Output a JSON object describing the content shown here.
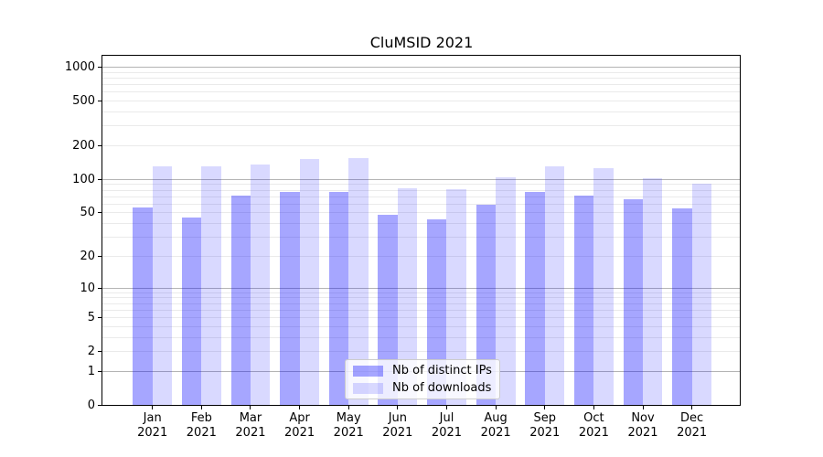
{
  "title": "CluMSID 2021",
  "chart_data": {
    "type": "bar",
    "title": "CluMSID 2021",
    "categories": [
      "Jan 2021",
      "Feb 2021",
      "Mar 2021",
      "Apr 2021",
      "May 2021",
      "Jun 2021",
      "Jul 2021",
      "Aug 2021",
      "Sep 2021",
      "Oct 2021",
      "Nov 2021",
      "Dec 2021"
    ],
    "series": [
      {
        "name": "Nb of distinct IPs",
        "color": "rgba(0,0,255,0.35)",
        "values": [
          56,
          45,
          72,
          78,
          77,
          48,
          44,
          59,
          78,
          71,
          66,
          55
        ]
      },
      {
        "name": "Nb of downloads",
        "color": "rgba(0,0,255,0.15)",
        "values": [
          130,
          130,
          137,
          153,
          156,
          84,
          82,
          105,
          130,
          126,
          103,
          91
        ]
      }
    ],
    "xlabel": "",
    "ylabel": "",
    "y_axis": {
      "scale": "log1p",
      "tick_labels": [
        "1000",
        "500",
        "200",
        "100",
        "50",
        "20",
        "10",
        "5",
        "2",
        "1",
        "0"
      ],
      "ticks": [
        1000,
        500,
        200,
        100,
        50,
        20,
        10,
        5,
        2,
        1,
        0
      ],
      "range": [
        0,
        1270
      ]
    },
    "grid": {
      "on": true,
      "major_at": [
        1,
        10,
        100,
        1000
      ],
      "major_color": "#b4b4b4",
      "minor_color": "#eaeaea"
    },
    "legend_position": "lower center"
  }
}
